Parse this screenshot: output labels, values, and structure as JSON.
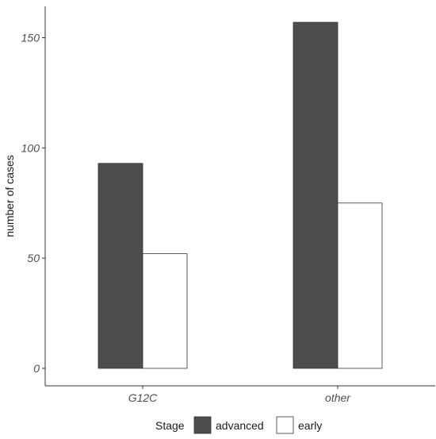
{
  "chart_data": {
    "type": "bar",
    "categories": [
      "G12C",
      "other"
    ],
    "series": [
      {
        "name": "advanced",
        "values": [
          93,
          157
        ],
        "color": "#4d4d4d"
      },
      {
        "name": "early",
        "values": [
          52,
          75
        ],
        "color": "#ffffff"
      }
    ],
    "ylabel": "number of cases",
    "xlabel": "",
    "ylim": [
      0,
      157
    ],
    "yticks": [
      0,
      50,
      100,
      150
    ],
    "grid": false,
    "legend": {
      "title": "Stage",
      "position": "bottom"
    }
  }
}
